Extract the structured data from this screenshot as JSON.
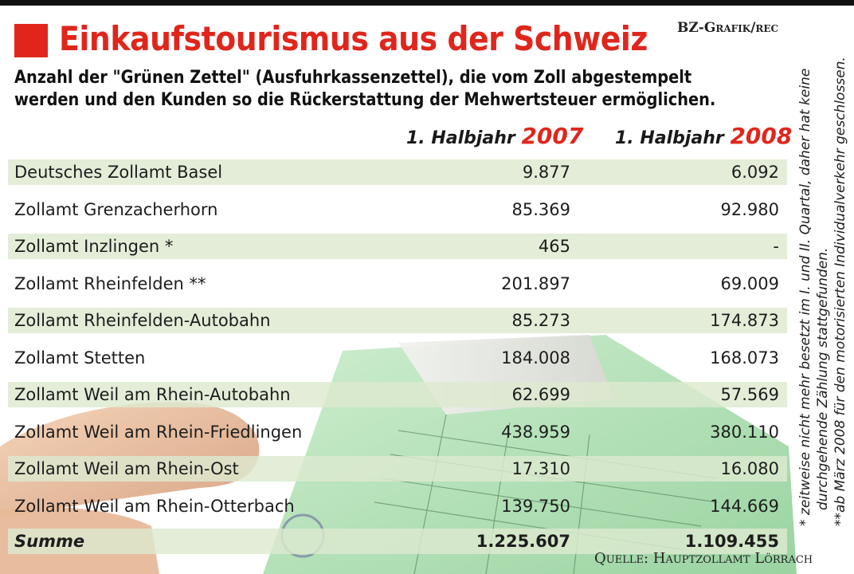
{
  "header": {
    "title": "Einkaufstourismus aus der Schweiz",
    "credit": "BZ-Grafik/rec",
    "subtitle_line1": "Anzahl der \"Grünen Zettel\" (Ausfuhrkassenzettel), die vom Zoll abgestempelt",
    "subtitle_line2": "werden und den Kunden so die Rückerstattung der Mehwertsteuer ermöglichen."
  },
  "colors": {
    "accent": "#e0261c",
    "row_shade": "#dde9d0",
    "paper_green": "#9fd7a3"
  },
  "chart_data": {
    "type": "table",
    "columns": [
      {
        "prefix": "1. Halbjahr",
        "year": "2007"
      },
      {
        "prefix": "1. Halbjahr",
        "year": "2008"
      }
    ],
    "rows": [
      {
        "name": "Deutsches Zollamt Basel",
        "v2007": "9.877",
        "v2008": "6.092"
      },
      {
        "name": "Zollamt Grenzacherhorn",
        "v2007": "85.369",
        "v2008": "92.980"
      },
      {
        "name": "Zollamt Inzlingen *",
        "v2007": "465",
        "v2008": "-"
      },
      {
        "name": "Zollamt Rheinfelden **",
        "v2007": "201.897",
        "v2008": "69.009"
      },
      {
        "name": "Zollamt Rheinfelden-Autobahn",
        "v2007": "85.273",
        "v2008": "174.873"
      },
      {
        "name": "Zollamt Stetten",
        "v2007": "184.008",
        "v2008": "168.073"
      },
      {
        "name": "Zollamt Weil am Rhein-Autobahn",
        "v2007": "62.699",
        "v2008": "57.569"
      },
      {
        "name": "Zollamt Weil am Rhein-Friedlingen",
        "v2007": "438.959",
        "v2008": "380.110"
      },
      {
        "name": "Zollamt Weil am Rhein-Ost",
        "v2007": "17.310",
        "v2008": "16.080"
      },
      {
        "name": "Zollamt Weil am Rhein-Otterbach",
        "v2007": "139.750",
        "v2008": "144.669"
      }
    ],
    "total": {
      "name": "Summe",
      "v2007": "1.225.607",
      "v2008": "1.109.455"
    },
    "footnotes": [
      "* zeitweise nicht mehr besetzt im I. und II. Quartal, daher hat keine",
      "durchgehende Zählung stattgefunden.",
      "**ab März 2008 für den motorisierten Individualverkehr geschlossen."
    ],
    "source": "Quelle: Hauptzollamt Lörrach"
  }
}
